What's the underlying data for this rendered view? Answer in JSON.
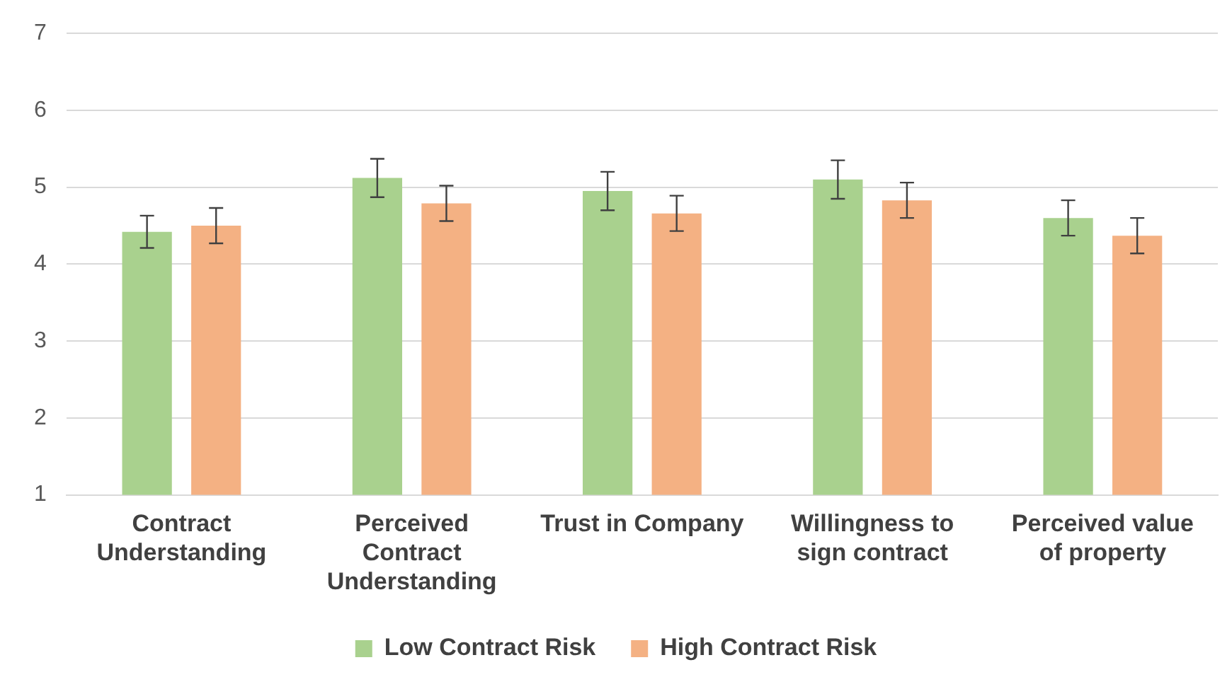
{
  "chart_data": {
    "type": "bar",
    "categories": [
      "Contract Understanding",
      "Perceived Contract Understanding",
      "Trust in Company",
      "Willingness to sign contract",
      "Perceived value of property"
    ],
    "series": [
      {
        "name": "Low Contract Risk",
        "color": "#a9d18e",
        "values": [
          4.42,
          5.12,
          4.95,
          5.1,
          4.6
        ],
        "errors": [
          0.21,
          0.25,
          0.25,
          0.25,
          0.23
        ]
      },
      {
        "name": "High Contract Risk",
        "color": "#f4b183",
        "values": [
          4.5,
          4.79,
          4.66,
          4.83,
          4.37
        ],
        "errors": [
          0.23,
          0.23,
          0.23,
          0.23,
          0.23
        ]
      }
    ],
    "ylim": [
      1,
      7
    ],
    "yticks": [
      1,
      2,
      3,
      4,
      5,
      6,
      7
    ],
    "grid": "y",
    "legend": "bottom"
  }
}
